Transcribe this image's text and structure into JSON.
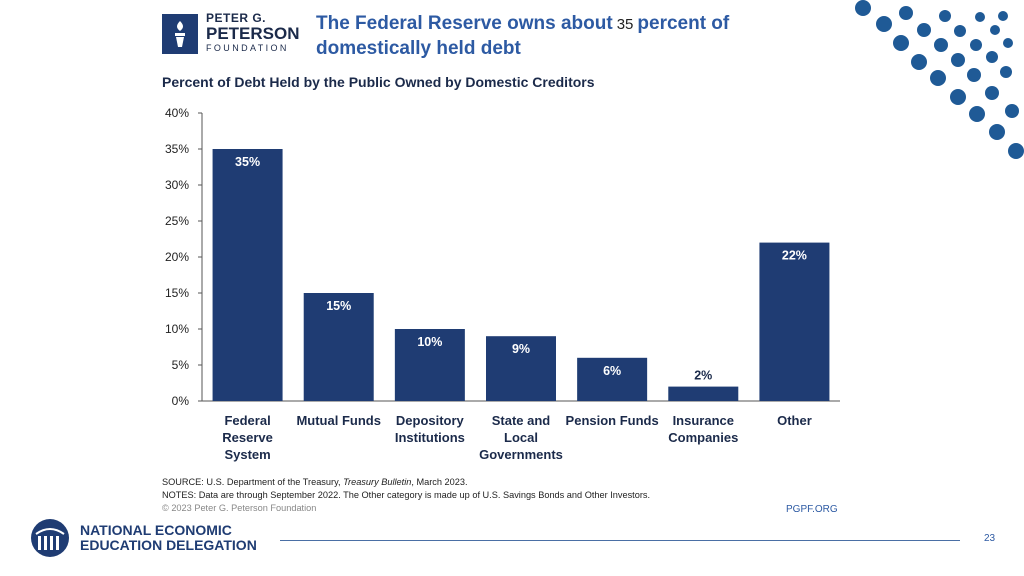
{
  "header": {
    "org_line1": "PETER G.",
    "org_line2": "PETERSON",
    "org_line3": "FOUNDATION",
    "headline_prefix": "The Federal Reserve owns about",
    "headline_number": "35",
    "headline_suffix": "percent of domestically held debt"
  },
  "chart_data": {
    "type": "bar",
    "title": "Percent of Debt Held by the Public Owned by Domestic Creditors",
    "categories": [
      [
        "Federal",
        "Reserve",
        "System"
      ],
      [
        "Mutual Funds"
      ],
      [
        "Depository",
        "Institutions"
      ],
      [
        "State and",
        "Local",
        "Governments"
      ],
      [
        "Pension Funds"
      ],
      [
        "Insurance",
        "Companies"
      ],
      [
        "Other"
      ]
    ],
    "values": [
      35,
      15,
      10,
      9,
      6,
      2,
      22
    ],
    "value_labels": [
      "35%",
      "15%",
      "10%",
      "9%",
      "6%",
      "2%",
      "22%"
    ],
    "yticks": [
      "0%",
      "5%",
      "10%",
      "15%",
      "20%",
      "25%",
      "30%",
      "35%",
      "40%"
    ],
    "ylim": [
      0,
      40
    ],
    "xlabel": "",
    "ylabel": "",
    "grid": false,
    "bar_color": "#1f3c73"
  },
  "footer": {
    "source_prefix": "SOURCE: U.S. Department of the Treasury, ",
    "source_italic": "Treasury Bulletin",
    "source_suffix": ", March 2023.",
    "notes": "NOTES: Data are through September 2022. The Other category is made up of U.S. Savings Bonds and Other Investors.",
    "copyright": "© 2023 Peter G. Peterson Foundation",
    "url": "PGPF.ORG"
  },
  "branding": {
    "line1": "NATIONAL ECONOMIC",
    "line2": "EDUCATION DELEGATION",
    "slide_number": "23"
  },
  "colors": {
    "navy": "#1f3c73",
    "accent_blue": "#2d5aa3",
    "dots": "#1f5a96"
  }
}
